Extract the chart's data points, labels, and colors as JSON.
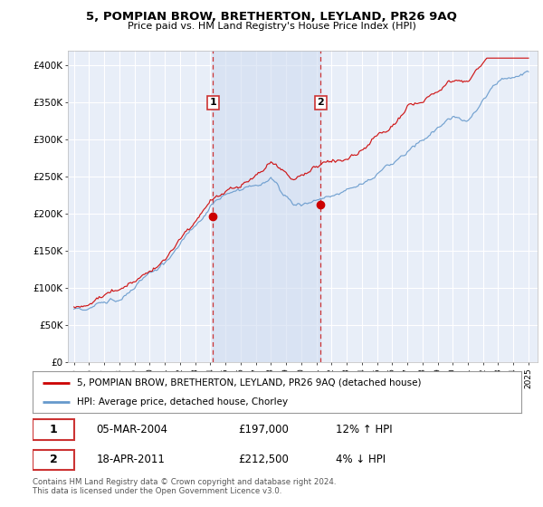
{
  "title": "5, POMPIAN BROW, BRETHERTON, LEYLAND, PR26 9AQ",
  "subtitle": "Price paid vs. HM Land Registry's House Price Index (HPI)",
  "ylim": [
    0,
    420000
  ],
  "background_color": "#ffffff",
  "plot_bg_color": "#e8eef8",
  "grid_color": "#ffffff",
  "sale1": {
    "date": 2004.18,
    "price": 197000,
    "label": "1"
  },
  "sale2": {
    "date": 2011.29,
    "price": 212500,
    "label": "2"
  },
  "sale1_date_str": "05-MAR-2004",
  "sale2_date_str": "18-APR-2011",
  "legend_line1": "5, POMPIAN BROW, BRETHERTON, LEYLAND, PR26 9AQ (detached house)",
  "legend_line2": "HPI: Average price, detached house, Chorley",
  "footer": "Contains HM Land Registry data © Crown copyright and database right 2024.\nThis data is licensed under the Open Government Licence v3.0.",
  "red_color": "#cc0000",
  "blue_color": "#6699cc",
  "shade_color": "#d0dcf0"
}
